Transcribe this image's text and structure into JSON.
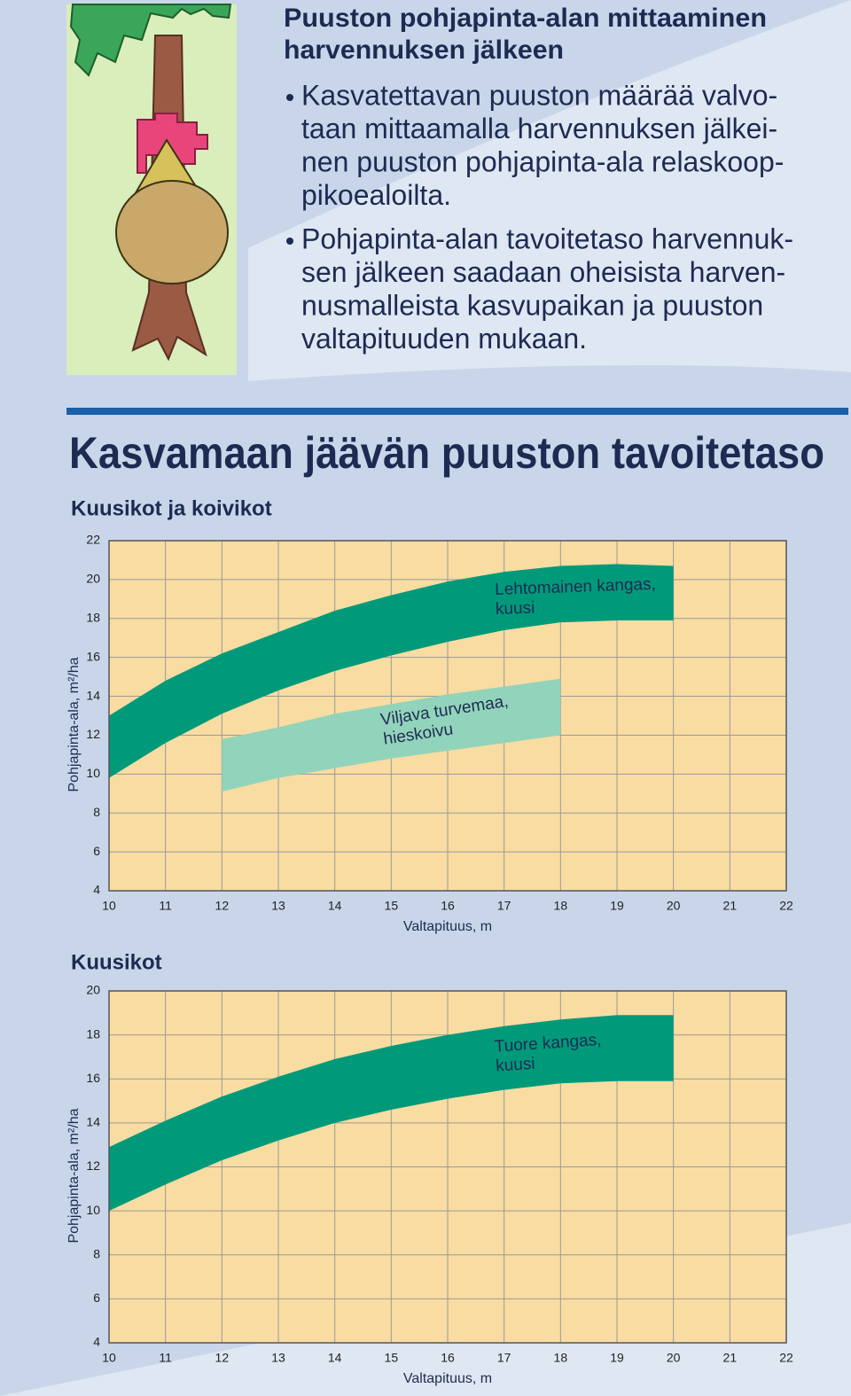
{
  "header": {
    "title_lines": [
      "Puuston pohjapinta-alan mittaaminen",
      "harvennuksen jälkeen"
    ],
    "bullets": [
      [
        "Kasvatettavan puuston määrää valvo-",
        "taan mittaamalla harvennuksen jälkei-",
        "nen puuston pohjapinta-ala relaskoop-",
        "pikoealoilta."
      ],
      [
        "Pohjapinta-alan tavoitetaso harvennuk-",
        "sen jälkeen saadaan oheisista harven-",
        "nusmalleista kasvupaikan ja puuston",
        "valtapituuden mukaan."
      ]
    ]
  },
  "section_title": "Kasvamaan jäävän puuston tavoitetaso",
  "chart_data": [
    {
      "type": "band",
      "subtitle": "Kuusikot ja koivikot",
      "x_label": "Valtapituus, m",
      "y_label": "Pohjapinta-ala, m²/ha",
      "xlim": [
        10,
        22
      ],
      "xticks": [
        10,
        11,
        12,
        13,
        14,
        15,
        16,
        17,
        18,
        19,
        20,
        21,
        22
      ],
      "ylim": [
        4,
        22
      ],
      "yticks": [
        4,
        6,
        8,
        10,
        12,
        14,
        16,
        18,
        20,
        22
      ],
      "grid": true,
      "plot_color": "#f8dca2",
      "series": [
        {
          "label_lines": [
            "Lehtomainen kangas,",
            "kuusi"
          ],
          "color": "#009a7a",
          "label_color": "#f8dca2",
          "x": [
            10,
            11,
            12,
            13,
            14,
            15,
            16,
            17,
            18,
            19,
            20
          ],
          "upper": [
            13.0,
            14.8,
            16.2,
            17.3,
            18.4,
            19.2,
            19.9,
            20.4,
            20.7,
            20.8,
            20.7
          ],
          "lower": [
            9.8,
            11.6,
            13.1,
            14.3,
            15.3,
            16.1,
            16.8,
            17.4,
            17.8,
            17.9,
            17.9
          ]
        },
        {
          "label_lines": [
            "Viljava turvemaa,",
            "hieskoivu"
          ],
          "color": "#92d4bb",
          "label_color": "#1d2b52",
          "x": [
            12,
            13,
            14,
            15,
            16,
            17,
            18
          ],
          "upper": [
            11.8,
            12.4,
            13.1,
            13.6,
            14.1,
            14.5,
            14.9
          ],
          "lower": [
            9.1,
            9.8,
            10.3,
            10.8,
            11.2,
            11.6,
            12.0
          ]
        }
      ]
    },
    {
      "type": "band",
      "subtitle": "Kuusikot",
      "x_label": "Valtapituus, m",
      "y_label": "Pohjapinta-ala, m²/ha",
      "xlim": [
        10,
        22
      ],
      "xticks": [
        10,
        11,
        12,
        13,
        14,
        15,
        16,
        17,
        18,
        19,
        20,
        21,
        22
      ],
      "ylim": [
        4,
        20
      ],
      "yticks": [
        4,
        6,
        8,
        10,
        12,
        14,
        16,
        18,
        20
      ],
      "grid": true,
      "plot_color": "#f8dca2",
      "series": [
        {
          "label_lines": [
            "Tuore kangas,",
            "kuusi"
          ],
          "color": "#009a7a",
          "label_color": "#f8dca2",
          "x": [
            10,
            11,
            12,
            13,
            14,
            15,
            16,
            17,
            18,
            19,
            20
          ],
          "upper": [
            12.9,
            14.1,
            15.2,
            16.1,
            16.9,
            17.5,
            18.0,
            18.4,
            18.7,
            18.9,
            18.9
          ],
          "lower": [
            10.0,
            11.2,
            12.3,
            13.2,
            14.0,
            14.6,
            15.1,
            15.5,
            15.8,
            15.9,
            15.9
          ]
        }
      ]
    }
  ]
}
